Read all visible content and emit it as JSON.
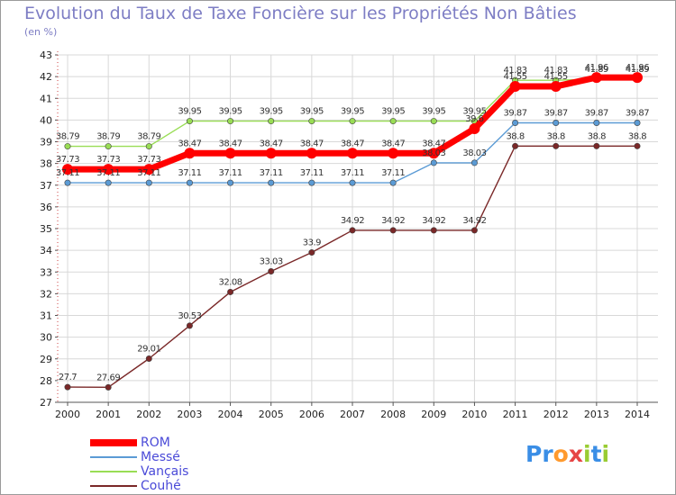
{
  "chart_data": {
    "type": "line",
    "title": "Evolution du Taux de Taxe Foncière sur les Propriétés Non Bâties",
    "subtitle": "(en %)",
    "xlabel": "",
    "ylabel": "",
    "x": [
      "2000",
      "2001",
      "2002",
      "2003",
      "2004",
      "2005",
      "2006",
      "2007",
      "2008",
      "2009",
      "2010",
      "2011",
      "2012",
      "2013",
      "2014"
    ],
    "ylim": [
      27,
      43
    ],
    "yticks": [
      "27",
      "28",
      "29",
      "30",
      "31",
      "32",
      "33",
      "34",
      "35",
      "36",
      "37",
      "38",
      "39",
      "40",
      "41",
      "42",
      "43"
    ],
    "grid": true,
    "series": [
      {
        "name": "ROM",
        "color": "#ff0000",
        "values": [
          37.73,
          37.73,
          37.73,
          38.47,
          38.47,
          38.47,
          38.47,
          38.47,
          38.47,
          38.47,
          39.6,
          41.55,
          41.55,
          41.96,
          41.96
        ],
        "labels": [
          "37.73",
          "37.73",
          "37.73",
          "38.47",
          "38.47",
          "38.47",
          "38.47",
          "38.47",
          "38.47",
          "38.47",
          "39.6",
          "41.55",
          "41.55",
          "41.96",
          "41.96"
        ]
      },
      {
        "name": "Messé",
        "color": "#5b9bd5",
        "values": [
          37.11,
          37.11,
          37.11,
          37.11,
          37.11,
          37.11,
          37.11,
          37.11,
          37.11,
          38.03,
          38.03,
          39.87,
          39.87,
          39.87,
          39.87
        ],
        "labels": [
          "37.11",
          "37.11",
          "37.11",
          "37.11",
          "37.11",
          "37.11",
          "37.11",
          "37.11",
          "37.11",
          "38.03",
          "38.03",
          "39.87",
          "39.87",
          "39.87",
          "39.87"
        ]
      },
      {
        "name": "Vançais",
        "color": "#99dd55",
        "values": [
          38.79,
          38.79,
          38.79,
          39.95,
          39.95,
          39.95,
          39.95,
          39.95,
          39.95,
          39.95,
          39.95,
          41.83,
          41.83,
          41.89,
          41.89
        ],
        "labels": [
          "38.79",
          "38.79",
          "38.79",
          "39.95",
          "39.95",
          "39.95",
          "39.95",
          "39.95",
          "39.95",
          "39.95",
          "39.95",
          "41.83",
          "41.83",
          "41.89",
          "41.89"
        ]
      },
      {
        "name": "Couhé",
        "color": "#7a2828",
        "values": [
          27.7,
          27.69,
          29.01,
          30.53,
          32.08,
          33.03,
          33.9,
          34.92,
          34.92,
          34.92,
          34.92,
          38.8,
          38.8,
          38.8,
          38.8
        ],
        "labels": [
          "27.7",
          "27.69",
          "29.01",
          "30.53",
          "32.08",
          "33.03",
          "33.9",
          "34.92",
          "34.92",
          "34.92",
          "34.92",
          "38.8",
          "38.8",
          "38.8",
          "38.8"
        ]
      }
    ]
  },
  "brand": "Proxiti",
  "brand_colors": [
    "#3a8ee6",
    "#3a8ee6",
    "#ff9a2e",
    "#e64545",
    "#99cc33",
    "#3a8ee6",
    "#99cc33"
  ]
}
